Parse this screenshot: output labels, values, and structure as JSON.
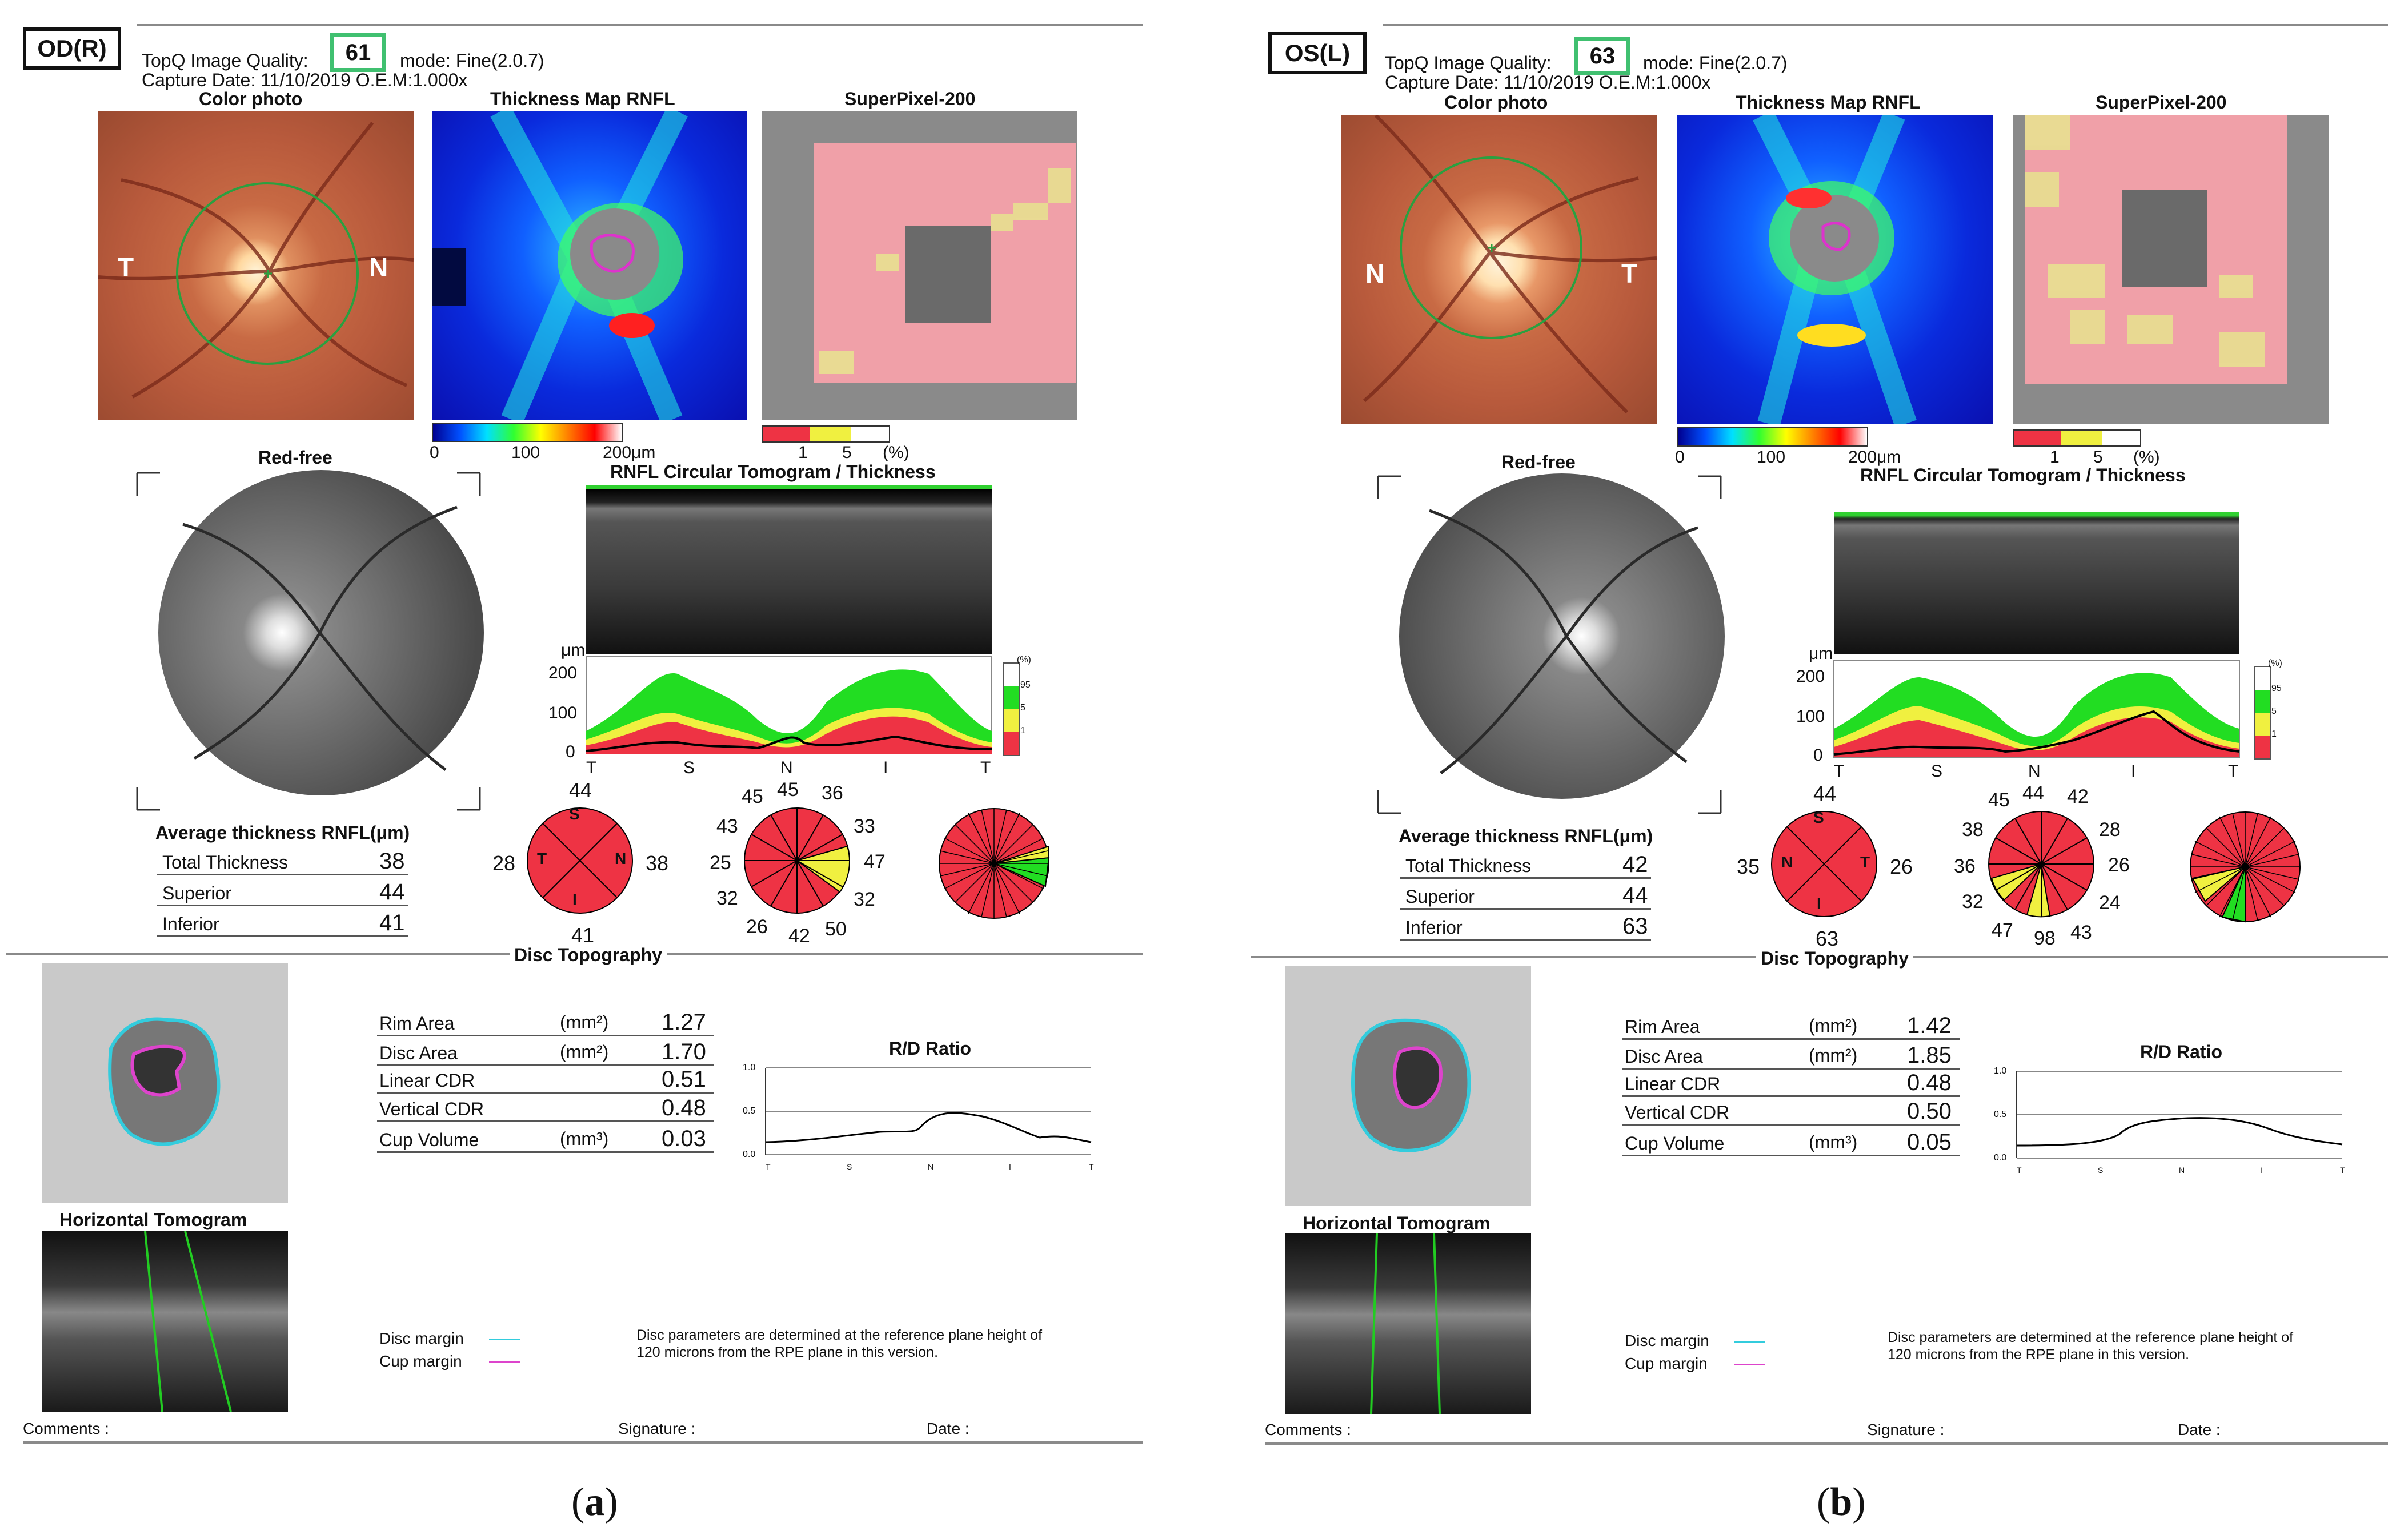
{
  "panels": [
    {
      "eye": "OD(R)",
      "quality_label": "TopQ Image Quality:",
      "quality": "61",
      "mode": "mode: Fine(2.0.7)",
      "capture": "Capture Date: 11/10/2019   O.E.M:1.000x",
      "color_photo_title": "Color photo",
      "thickness_map_title": "Thickness Map RNFL",
      "superpixel_title": "SuperPixel-200",
      "photo_left": "T",
      "photo_right": "N",
      "colorbar_ticks": [
        "0",
        "100",
        "200μm"
      ],
      "sp_ticks": [
        "1",
        "5",
        "(%)"
      ],
      "red_free_title": "Red-free",
      "tomogram_title": "RNFL Circular Tomogram / Thickness",
      "um": "μm",
      "y_ticks": [
        "200",
        "100",
        "0"
      ],
      "x_ticks": [
        "T",
        "S",
        "N",
        "I",
        "T"
      ],
      "legend_labels": [
        "(%)",
        "95",
        "5",
        "1"
      ],
      "avg_title": "Average thickness RNFL(μm)",
      "avg_rows": [
        {
          "label": "Total Thickness",
          "value": "38"
        },
        {
          "label": "Superior",
          "value": "44"
        },
        {
          "label": "Inferior",
          "value": "41"
        }
      ],
      "quadrant": {
        "top": "44",
        "left": "28",
        "right": "38",
        "bottom": "41",
        "s": "S",
        "t": "T",
        "n": "N",
        "i": "I",
        "left_letter": "T",
        "right_letter": "N"
      },
      "clock": [
        "45",
        "36",
        "33",
        "47",
        "32",
        "50",
        "42",
        "26",
        "32",
        "25",
        "43",
        "45"
      ],
      "disc_topo_title": "Disc Topography",
      "params": [
        {
          "label": "Rim Area",
          "unit": "(mm²)",
          "value": "1.27"
        },
        {
          "label": "Disc Area",
          "unit": "(mm²)",
          "value": "1.70"
        },
        {
          "label": "Linear CDR",
          "unit": "",
          "value": "0.51"
        },
        {
          "label": "Vertical CDR",
          "unit": "",
          "value": "0.48"
        },
        {
          "label": "Cup Volume",
          "unit": "(mm³)",
          "value": "0.03"
        }
      ],
      "rd_title": "R/D Ratio",
      "rd_y": [
        "1.0",
        "0.5",
        "0.0"
      ],
      "rd_x": [
        "T",
        "S",
        "N",
        "I",
        "T"
      ],
      "horizontal_title": "Horizontal Tomogram",
      "disc_margin": "Disc margin",
      "cup_margin": "Cup margin",
      "note_line1": "Disc parameters are determined at the reference plane height of",
      "note_line2": "120 microns from the RPE plane in this version.",
      "comments": "Comments :",
      "signature": "Signature :",
      "date": "Date :",
      "caption_open": "(",
      "caption_letter": "a",
      "caption_close": ")"
    },
    {
      "eye": "OS(L)",
      "quality_label": "TopQ Image Quality:",
      "quality": "63",
      "mode": "mode: Fine(2.0.7)",
      "capture": "Capture Date: 11/10/2019   O.E.M:1.000x",
      "color_photo_title": "Color photo",
      "thickness_map_title": "Thickness Map RNFL",
      "superpixel_title": "SuperPixel-200",
      "photo_left": "N",
      "photo_right": "T",
      "colorbar_ticks": [
        "0",
        "100",
        "200μm"
      ],
      "sp_ticks": [
        "1",
        "5",
        "(%)"
      ],
      "red_free_title": "Red-free",
      "tomogram_title": "RNFL Circular Tomogram / Thickness",
      "um": "μm",
      "y_ticks": [
        "200",
        "100",
        "0"
      ],
      "x_ticks": [
        "T",
        "S",
        "N",
        "I",
        "T"
      ],
      "legend_labels": [
        "(%)",
        "95",
        "5",
        "1"
      ],
      "avg_title": "Average thickness RNFL(μm)",
      "avg_rows": [
        {
          "label": "Total Thickness",
          "value": "42"
        },
        {
          "label": "Superior",
          "value": "44"
        },
        {
          "label": "Inferior",
          "value": "63"
        }
      ],
      "quadrant": {
        "top": "44",
        "left": "35",
        "right": "26",
        "bottom": "63",
        "s": "S",
        "t": "T",
        "n": "N",
        "i": "I",
        "left_letter": "N",
        "right_letter": "T"
      },
      "clock": [
        "44",
        "42",
        "28",
        "26",
        "24",
        "43",
        "98",
        "47",
        "32",
        "36",
        "38",
        "45"
      ],
      "disc_topo_title": "Disc Topography",
      "params": [
        {
          "label": "Rim Area",
          "unit": "(mm²)",
          "value": "1.42"
        },
        {
          "label": "Disc Area",
          "unit": "(mm²)",
          "value": "1.85"
        },
        {
          "label": "Linear CDR",
          "unit": "",
          "value": "0.48"
        },
        {
          "label": "Vertical CDR",
          "unit": "",
          "value": "0.50"
        },
        {
          "label": "Cup Volume",
          "unit": "(mm³)",
          "value": "0.05"
        }
      ],
      "rd_title": "R/D Ratio",
      "rd_y": [
        "1.0",
        "0.5",
        "0.0"
      ],
      "rd_x": [
        "T",
        "S",
        "N",
        "I",
        "T"
      ],
      "horizontal_title": "Horizontal Tomogram",
      "disc_margin": "Disc margin",
      "cup_margin": "Cup margin",
      "note_line1": "Disc parameters are determined at the reference plane height of",
      "note_line2": "120 microns from the RPE plane in this version.",
      "comments": "Comments :",
      "signature": "Signature :",
      "date": "Date :",
      "caption_open": "(",
      "caption_letter": "b",
      "caption_close": ")"
    }
  ],
  "colors": {
    "normal_green": "#22dd22",
    "borderline_yellow": "#f0f040",
    "abnormal_red": "#ee3344",
    "disc_margin": "#33ccdd",
    "cup_margin": "#dd44cc",
    "quality_box": "#40c070"
  },
  "icons": [
    "fundus-photo",
    "thickness-map",
    "superpixel-map",
    "red-free-fundus",
    "oct-bscan",
    "disc-topography-map",
    "horizontal-bscan"
  ]
}
